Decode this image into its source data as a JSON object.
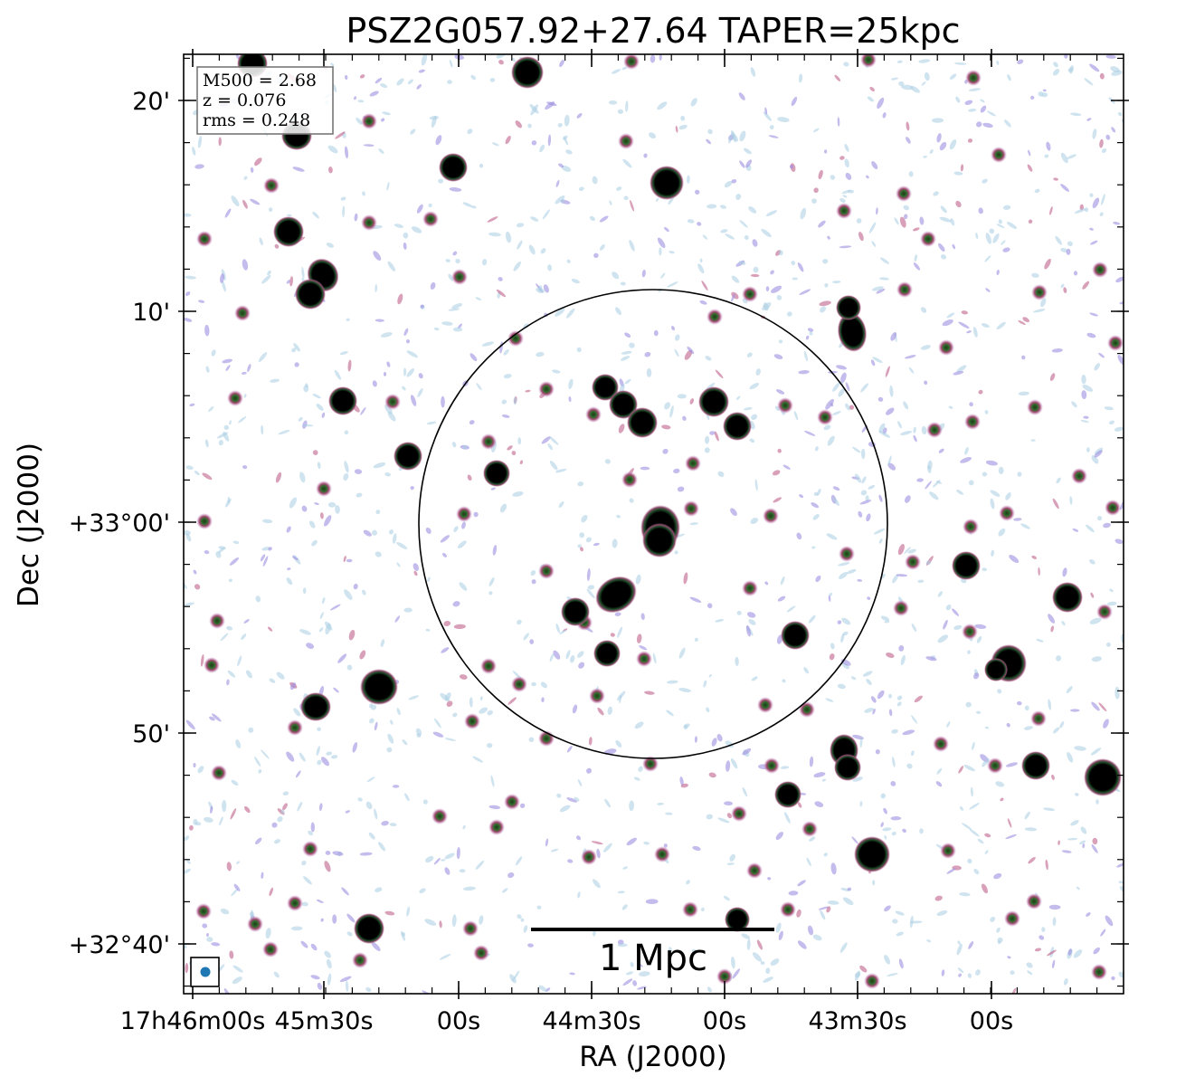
{
  "chart_data": {
    "type": "image",
    "title": "PSZ2G057.92+27.64 TAPER=25kpc",
    "xlabel": "RA (J2000)",
    "ylabel": "Dec (J2000)",
    "x_ticks": [
      "17h46m00s",
      "45m30s",
      "00s",
      "44m30s",
      "00s",
      "43m30s",
      "00s"
    ],
    "y_ticks": [
      "20'",
      "10'",
      "+33°00'",
      "50'",
      "+32°40'"
    ],
    "info_box": [
      "M500 = 2.68",
      "z = 0.076",
      "rms = 0.248"
    ],
    "scale_bar": {
      "label": "1 Mpc"
    },
    "colors": {
      "sources": "#000000",
      "noise_light": "#a9cde3",
      "noise_mid": "#9d8fe0",
      "noise_strong": "#c0608a",
      "beam": "#1f77b4",
      "circle": "#000000"
    }
  }
}
